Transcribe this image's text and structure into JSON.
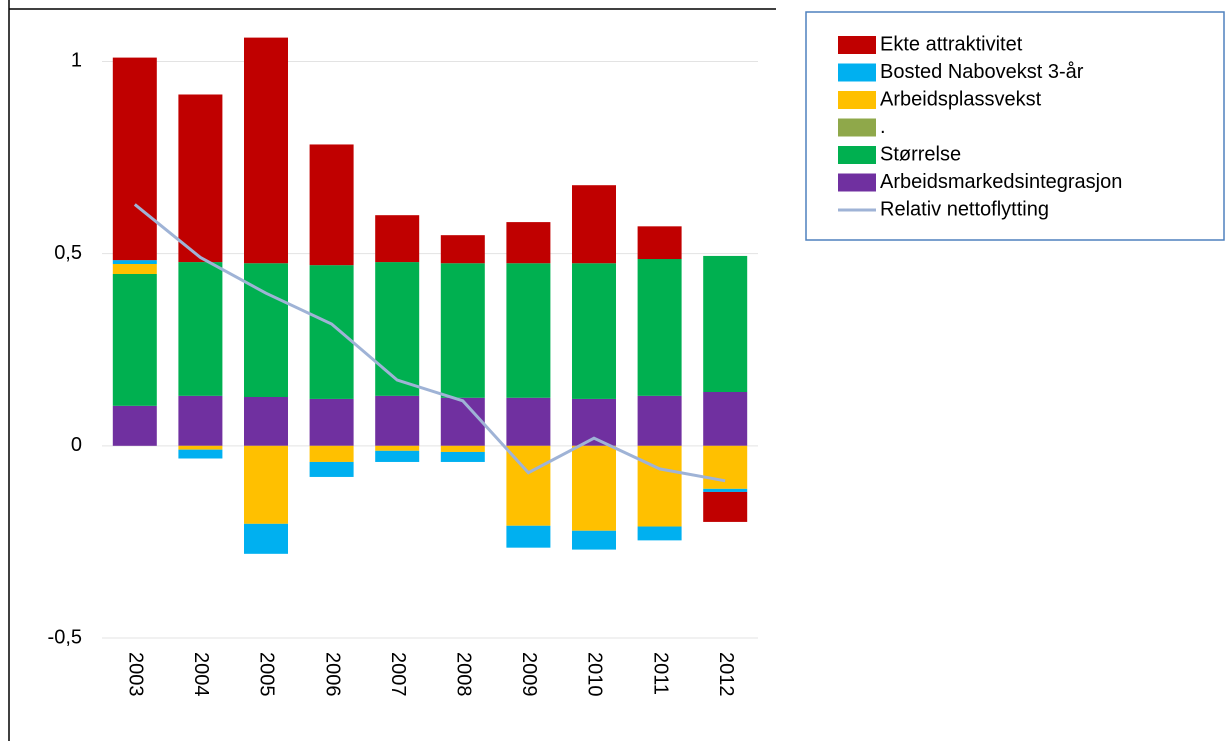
{
  "chart_data": {
    "type": "bar",
    "stacked": true,
    "categories": [
      "2003",
      "2004",
      "2005",
      "2006",
      "2007",
      "2008",
      "2009",
      "2010",
      "2011",
      "2012"
    ],
    "series": [
      {
        "name": "Ekte attraktivitet",
        "color": "#c00000",
        "values": [
          0.527,
          0.436,
          0.587,
          0.314,
          0.122,
          0.073,
          0.107,
          0.203,
          0.085,
          -0.078
        ]
      },
      {
        "name": "Bosted Nabovekst 3-år",
        "color": "#00b0f0",
        "values": [
          0.01,
          -0.023,
          -0.078,
          -0.039,
          -0.029,
          -0.026,
          -0.057,
          -0.049,
          -0.036,
          -0.008
        ]
      },
      {
        "name": "Arbeidsplassvekst",
        "color": "#ffc000",
        "values": [
          0.026,
          -0.01,
          -0.203,
          -0.042,
          -0.013,
          -0.016,
          -0.208,
          -0.221,
          -0.21,
          -0.112
        ]
      },
      {
        "name": ".",
        "color": "#8fa84a",
        "values": [
          0,
          0,
          0,
          0,
          0,
          0,
          0,
          0,
          0,
          0
        ]
      },
      {
        "name": "Størrelse",
        "color": "#00b050",
        "values": [
          0.343,
          0.348,
          0.348,
          0.348,
          0.348,
          0.35,
          0.35,
          0.353,
          0.356,
          0.354
        ]
      },
      {
        "name": "Arbeidsmarkedsintegrasjon",
        "color": "#7030a0",
        "values": [
          0.104,
          0.13,
          0.127,
          0.122,
          0.13,
          0.125,
          0.125,
          0.122,
          0.13,
          0.14
        ]
      },
      {
        "name": "Relativ nettoflytting",
        "color": "#9fb3d6",
        "type": "line",
        "values": [
          0.628,
          0.49,
          0.397,
          0.317,
          0.171,
          0.117,
          -0.07,
          0.02,
          -0.06,
          -0.091
        ]
      }
    ],
    "ylim": [
      -0.5,
      1.1
    ],
    "yticks": [
      {
        "value": -0.5,
        "label": "-0,5"
      },
      0,
      {
        "value": 0.5,
        "label": "0,5"
      },
      1
    ],
    "grid": true,
    "legend": "top-right"
  }
}
